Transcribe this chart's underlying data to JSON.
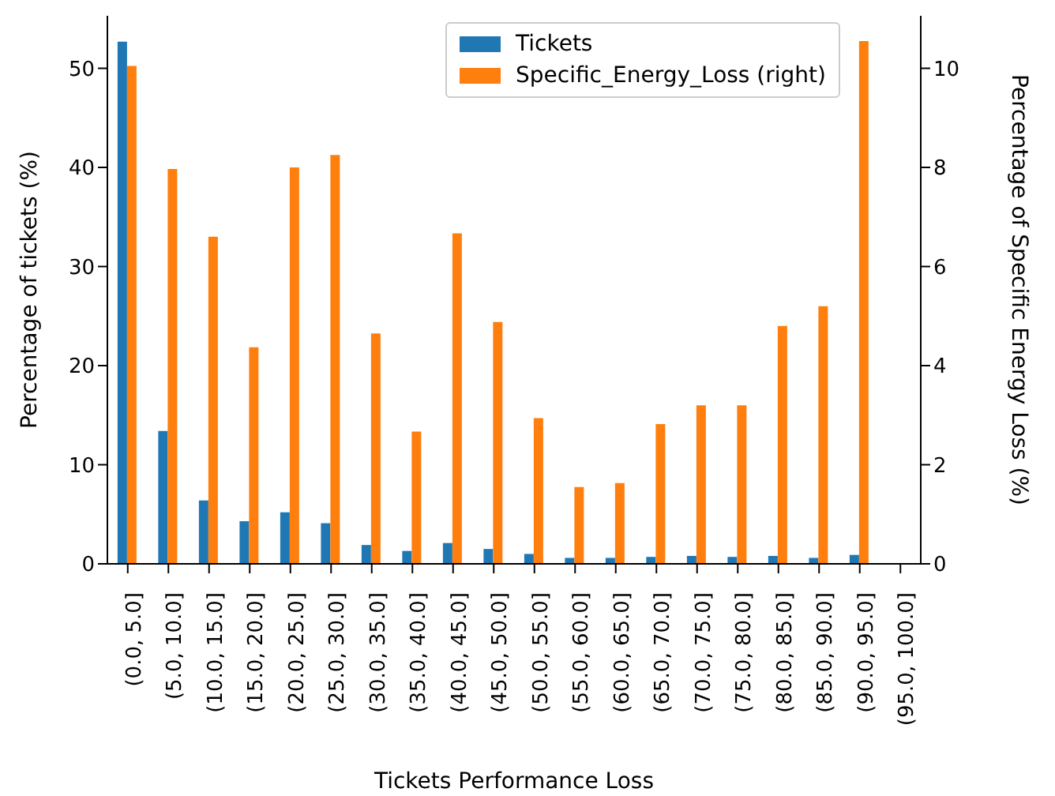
{
  "chart_data": {
    "type": "bar",
    "xlabel": "Tickets Performance Loss",
    "ylabel": "Percentage of tickets (%)",
    "y2label": "Percentage of Specific Energy Loss (%)",
    "categories": [
      "(0.0, 5.0]",
      "(5.0, 10.0]",
      "(10.0, 15.0]",
      "(15.0, 20.0]",
      "(20.0, 25.0]",
      "(25.0, 30.0]",
      "(30.0, 35.0]",
      "(35.0, 40.0]",
      "(40.0, 45.0]",
      "(45.0, 50.0]",
      "(50.0, 55.0]",
      "(55.0, 60.0]",
      "(60.0, 65.0]",
      "(65.0, 70.0]",
      "(70.0, 75.0]",
      "(75.0, 80.0]",
      "(80.0, 85.0]",
      "(85.0, 90.0]",
      "(90.0, 95.0]",
      "(95.0, 100.0]"
    ],
    "series": [
      {
        "name": "Tickets",
        "color": "#1f77b4",
        "values": [
          52.7,
          13.4,
          6.4,
          4.3,
          5.2,
          4.1,
          1.9,
          1.3,
          2.1,
          1.5,
          1.0,
          0.6,
          0.6,
          0.7,
          0.8,
          0.7,
          0.8,
          0.6,
          0.9,
          0
        ]
      },
      {
        "name": "Specific_Energy_Loss (right)",
        "color": "#ff7f0e",
        "axis": "y2",
        "values": [
          10.05,
          7.97,
          6.6,
          4.37,
          8.0,
          8.25,
          4.65,
          2.67,
          6.67,
          4.88,
          2.94,
          1.55,
          1.63,
          2.82,
          3.2,
          3.2,
          4.8,
          5.2,
          10.55,
          0
        ]
      }
    ],
    "ylim": [
      0,
      55.3
    ],
    "yticks": [
      0,
      10,
      20,
      30,
      40,
      50
    ],
    "y2lim": [
      0,
      11.06
    ],
    "y2ticks": [
      0,
      2,
      4,
      6,
      8,
      10
    ],
    "grid": false,
    "legend": "top right"
  }
}
